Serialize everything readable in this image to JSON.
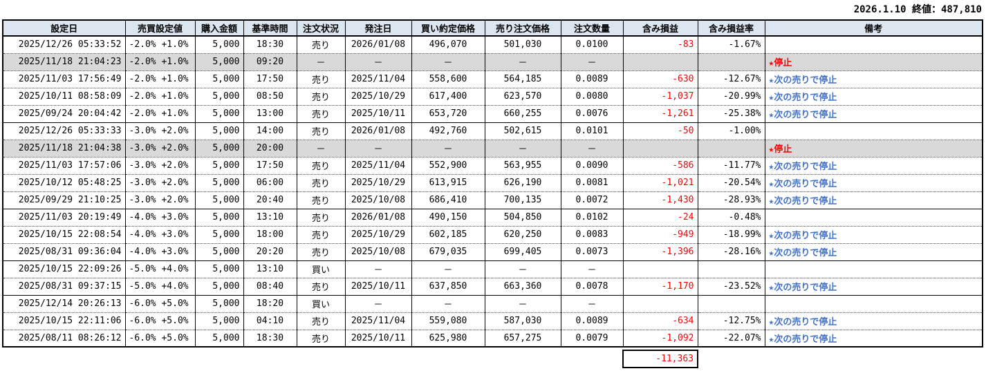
{
  "header": {
    "title": "2026.1.10 終値：487,810"
  },
  "colors": {
    "header_bg": "#dce6f1",
    "stopped_row_bg": "#d9d9d9",
    "loss_text": "#ff0000",
    "note_text": "#4472c4"
  },
  "table": {
    "columns": [
      "設定日",
      "売買設定値",
      "購入金額",
      "基準時間",
      "注文状況",
      "発注日",
      "買い約定価格",
      "売り注文価格",
      "注文数量",
      "含み損益",
      "含み損益率",
      "備考"
    ],
    "rows": [
      {
        "cells": [
          "2025/12/26 05:33:52",
          "-2.0% +1.0%",
          "5,000",
          "18:30",
          "売り",
          "2026/01/08",
          "496,070",
          "501,030",
          "0.0100",
          "-83",
          "-1.67%",
          ""
        ],
        "gray": false,
        "remark_style": "none",
        "group_end": false
      },
      {
        "cells": [
          "2025/11/18 21:04:23",
          "-2.0% +1.0%",
          "5,000",
          "09:20",
          "－",
          "－",
          "－",
          "－",
          "－",
          "",
          "",
          "★停止"
        ],
        "gray": true,
        "remark_style": "stop",
        "group_end": false
      },
      {
        "cells": [
          "2025/11/03 17:56:49",
          "-2.0% +1.0%",
          "5,000",
          "17:50",
          "売り",
          "2025/11/04",
          "558,600",
          "564,185",
          "0.0089",
          "-630",
          "-12.67%",
          "★次の売りで停止"
        ],
        "gray": false,
        "remark_style": "next",
        "group_end": false
      },
      {
        "cells": [
          "2025/10/11 08:58:09",
          "-2.0% +1.0%",
          "5,000",
          "08:50",
          "売り",
          "2025/10/29",
          "617,400",
          "623,570",
          "0.0080",
          "-1,037",
          "-20.99%",
          "★次の売りで停止"
        ],
        "gray": false,
        "remark_style": "next",
        "group_end": false
      },
      {
        "cells": [
          "2025/09/24 20:04:42",
          "-2.0% +1.0%",
          "5,000",
          "13:00",
          "売り",
          "2025/10/11",
          "653,720",
          "660,255",
          "0.0076",
          "-1,261",
          "-25.38%",
          "★次の売りで停止"
        ],
        "gray": false,
        "remark_style": "next",
        "group_end": true
      },
      {
        "cells": [
          "2025/12/26 05:33:33",
          "-3.0% +2.0%",
          "5,000",
          "14:00",
          "売り",
          "2026/01/08",
          "492,760",
          "502,615",
          "0.0101",
          "-50",
          "-1.00%",
          ""
        ],
        "gray": false,
        "remark_style": "none",
        "group_end": false
      },
      {
        "cells": [
          "2025/11/18 21:04:38",
          "-3.0% +2.0%",
          "5,000",
          "20:00",
          "－",
          "－",
          "－",
          "－",
          "－",
          "",
          "",
          "★停止"
        ],
        "gray": true,
        "remark_style": "stop",
        "group_end": false
      },
      {
        "cells": [
          "2025/11/03 17:57:06",
          "-3.0% +2.0%",
          "5,000",
          "17:50",
          "売り",
          "2025/11/04",
          "552,900",
          "563,955",
          "0.0090",
          "-586",
          "-11.77%",
          "★次の売りで停止"
        ],
        "gray": false,
        "remark_style": "next",
        "group_end": false
      },
      {
        "cells": [
          "2025/10/12 05:48:25",
          "-3.0% +2.0%",
          "5,000",
          "06:00",
          "売り",
          "2025/10/29",
          "613,915",
          "626,190",
          "0.0081",
          "-1,021",
          "-20.54%",
          "★次の売りで停止"
        ],
        "gray": false,
        "remark_style": "next",
        "group_end": false
      },
      {
        "cells": [
          "2025/09/29 21:10:25",
          "-3.0% +2.0%",
          "5,000",
          "20:40",
          "売り",
          "2025/10/08",
          "686,410",
          "700,135",
          "0.0072",
          "-1,430",
          "-28.93%",
          "★次の売りで停止"
        ],
        "gray": false,
        "remark_style": "next",
        "group_end": true
      },
      {
        "cells": [
          "2025/11/03 20:19:49",
          "-4.0% +3.0%",
          "5,000",
          "13:10",
          "売り",
          "2026/01/08",
          "490,150",
          "504,850",
          "0.0102",
          "-24",
          "-0.48%",
          ""
        ],
        "gray": false,
        "remark_style": "none",
        "group_end": false
      },
      {
        "cells": [
          "2025/10/15 22:08:54",
          "-4.0% +3.0%",
          "5,000",
          "18:00",
          "売り",
          "2025/10/29",
          "602,185",
          "620,250",
          "0.0083",
          "-949",
          "-18.99%",
          "★次の売りで停止"
        ],
        "gray": false,
        "remark_style": "next",
        "group_end": false
      },
      {
        "cells": [
          "2025/08/31 09:36:04",
          "-4.0% +3.0%",
          "5,000",
          "20:20",
          "売り",
          "2025/10/08",
          "679,035",
          "699,405",
          "0.0073",
          "-1,396",
          "-28.16%",
          "★次の売りで停止"
        ],
        "gray": false,
        "remark_style": "next",
        "group_end": true
      },
      {
        "cells": [
          "2025/10/15 22:09:26",
          "-5.0% +4.0%",
          "5,000",
          "13:10",
          "買い",
          "－",
          "－",
          "－",
          "－",
          "",
          "",
          ""
        ],
        "gray": false,
        "remark_style": "none",
        "group_end": false
      },
      {
        "cells": [
          "2025/08/31 09:37:15",
          "-5.0% +4.0%",
          "5,000",
          "08:40",
          "売り",
          "2025/10/11",
          "637,850",
          "663,360",
          "0.0078",
          "-1,170",
          "-23.52%",
          "★次の売りで停止"
        ],
        "gray": false,
        "remark_style": "next",
        "group_end": true
      },
      {
        "cells": [
          "2025/12/14 20:26:13",
          "-6.0% +5.0%",
          "5,000",
          "18:20",
          "買い",
          "－",
          "－",
          "－",
          "－",
          "",
          "",
          ""
        ],
        "gray": false,
        "remark_style": "none",
        "group_end": false
      },
      {
        "cells": [
          "2025/10/15 22:11:06",
          "-6.0% +5.0%",
          "5,000",
          "04:10",
          "売り",
          "2025/11/04",
          "559,080",
          "587,030",
          "0.0089",
          "-634",
          "-12.75%",
          "★次の売りで停止"
        ],
        "gray": false,
        "remark_style": "next",
        "group_end": false
      },
      {
        "cells": [
          "2025/08/11 08:26:12",
          "-6.0% +5.0%",
          "5,000",
          "18:30",
          "売り",
          "2025/10/11",
          "625,980",
          "657,275",
          "0.0079",
          "-1,092",
          "-22.07%",
          "★次の売りで停止"
        ],
        "gray": false,
        "remark_style": "next",
        "group_end": false
      }
    ],
    "total": "-11,363"
  }
}
